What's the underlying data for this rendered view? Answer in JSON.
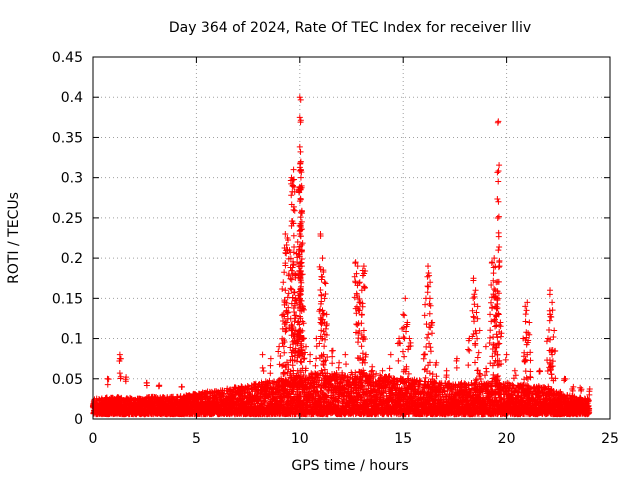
{
  "chart_data": {
    "type": "scatter",
    "title": "Day 364 of 2024, Rate Of TEC Index for receiver lliv",
    "xlabel": "GPS time / hours",
    "ylabel": "ROTI / TECUs",
    "xlim": [
      0,
      25
    ],
    "ylim": [
      0,
      0.45
    ],
    "x_ticks": [
      0,
      5,
      10,
      15,
      20,
      25
    ],
    "y_ticks": [
      0,
      0.05,
      0.1,
      0.15,
      0.2,
      0.25,
      0.3,
      0.35,
      0.4,
      0.45
    ],
    "x_tick_labels": [
      "0",
      "5",
      "10",
      "15",
      "20",
      "25"
    ],
    "y_tick_labels": [
      "0",
      "0.05",
      "0.1",
      "0.15",
      "0.2",
      "0.25",
      "0.3",
      "0.35",
      "0.4",
      "0.45"
    ],
    "grid": true,
    "marker": "+",
    "color": "#ff0000",
    "baseline_envelope": [
      [
        0,
        0.025
      ],
      [
        1,
        0.028
      ],
      [
        2,
        0.026
      ],
      [
        3,
        0.028
      ],
      [
        4,
        0.028
      ],
      [
        5,
        0.032
      ],
      [
        6,
        0.036
      ],
      [
        7,
        0.04
      ],
      [
        8,
        0.045
      ],
      [
        9,
        0.05
      ],
      [
        10,
        0.055
      ],
      [
        11,
        0.058
      ],
      [
        12,
        0.058
      ],
      [
        13,
        0.06
      ],
      [
        14,
        0.055
      ],
      [
        15,
        0.05
      ],
      [
        16,
        0.048
      ],
      [
        17,
        0.045
      ],
      [
        18,
        0.045
      ],
      [
        19,
        0.045
      ],
      [
        20,
        0.045
      ],
      [
        21,
        0.042
      ],
      [
        22,
        0.04
      ],
      [
        23,
        0.03
      ],
      [
        24,
        0.025
      ]
    ],
    "series": [
      {
        "name": "ROTI",
        "points": [
          [
            0.7,
            0.05
          ],
          [
            1.3,
            0.08
          ],
          [
            1.3,
            0.075
          ],
          [
            1.6,
            0.052
          ],
          [
            2.6,
            0.045
          ],
          [
            3.2,
            0.042
          ],
          [
            4.3,
            0.04
          ],
          [
            8.2,
            0.08
          ],
          [
            8.6,
            0.075
          ],
          [
            9.0,
            0.09
          ],
          [
            9.2,
            0.13
          ],
          [
            9.3,
            0.16
          ],
          [
            9.2,
            0.17
          ],
          [
            9.3,
            0.23
          ],
          [
            9.4,
            0.225
          ],
          [
            9.5,
            0.21
          ],
          [
            9.6,
            0.24
          ],
          [
            9.6,
            0.3
          ],
          [
            9.7,
            0.26
          ],
          [
            9.7,
            0.31
          ],
          [
            9.8,
            0.18
          ],
          [
            9.8,
            0.15
          ],
          [
            9.9,
            0.12
          ],
          [
            9.9,
            0.22
          ],
          [
            10.0,
            0.4
          ],
          [
            10.0,
            0.375
          ],
          [
            10.05,
            0.32
          ],
          [
            10.05,
            0.31
          ],
          [
            10.1,
            0.245
          ],
          [
            10.0,
            0.23
          ],
          [
            10.1,
            0.19
          ],
          [
            10.15,
            0.14
          ],
          [
            10.2,
            0.1
          ],
          [
            10.3,
            0.09
          ],
          [
            10.5,
            0.08
          ],
          [
            10.8,
            0.1
          ],
          [
            11.0,
            0.23
          ],
          [
            11.1,
            0.2
          ],
          [
            11.2,
            0.17
          ],
          [
            11.2,
            0.15
          ],
          [
            11.3,
            0.13
          ],
          [
            11.0,
            0.12
          ],
          [
            11.1,
            0.1
          ],
          [
            11.6,
            0.085
          ],
          [
            11.9,
            0.07
          ],
          [
            12.2,
            0.08
          ],
          [
            12.7,
            0.195
          ],
          [
            12.8,
            0.19
          ],
          [
            12.9,
            0.17
          ],
          [
            13.0,
            0.16
          ],
          [
            13.1,
            0.19
          ],
          [
            13.0,
            0.13
          ],
          [
            13.1,
            0.11
          ],
          [
            13.2,
            0.08
          ],
          [
            13.5,
            0.065
          ],
          [
            14.0,
            0.06
          ],
          [
            14.4,
            0.08
          ],
          [
            14.8,
            0.1
          ],
          [
            15.0,
            0.13
          ],
          [
            15.1,
            0.15
          ],
          [
            15.2,
            0.12
          ],
          [
            15.3,
            0.1
          ],
          [
            16.0,
            0.08
          ],
          [
            16.1,
            0.15
          ],
          [
            16.2,
            0.19
          ],
          [
            16.3,
            0.17
          ],
          [
            16.4,
            0.12
          ],
          [
            16.6,
            0.07
          ],
          [
            17.1,
            0.06
          ],
          [
            17.6,
            0.075
          ],
          [
            18.2,
            0.1
          ],
          [
            18.4,
            0.175
          ],
          [
            18.5,
            0.16
          ],
          [
            18.6,
            0.14
          ],
          [
            18.7,
            0.11
          ],
          [
            19.0,
            0.09
          ],
          [
            19.2,
            0.13
          ],
          [
            19.3,
            0.195
          ],
          [
            19.4,
            0.2
          ],
          [
            19.5,
            0.17
          ],
          [
            19.45,
            0.16
          ],
          [
            19.5,
            0.14
          ],
          [
            19.6,
            0.21
          ],
          [
            19.6,
            0.37
          ],
          [
            19.7,
            0.12
          ],
          [
            20.0,
            0.08
          ],
          [
            20.4,
            0.06
          ],
          [
            20.8,
            0.1
          ],
          [
            20.9,
            0.14
          ],
          [
            21.0,
            0.145
          ],
          [
            21.1,
            0.12
          ],
          [
            21.0,
            0.08
          ],
          [
            21.6,
            0.06
          ],
          [
            22.0,
            0.1
          ],
          [
            22.1,
            0.13
          ],
          [
            22.1,
            0.16
          ],
          [
            22.2,
            0.145
          ],
          [
            22.3,
            0.11
          ],
          [
            22.2,
            0.08
          ],
          [
            22.8,
            0.05
          ],
          [
            23.2,
            0.035
          ],
          [
            23.6,
            0.035
          ],
          [
            24.0,
            0.03
          ]
        ]
      }
    ]
  }
}
